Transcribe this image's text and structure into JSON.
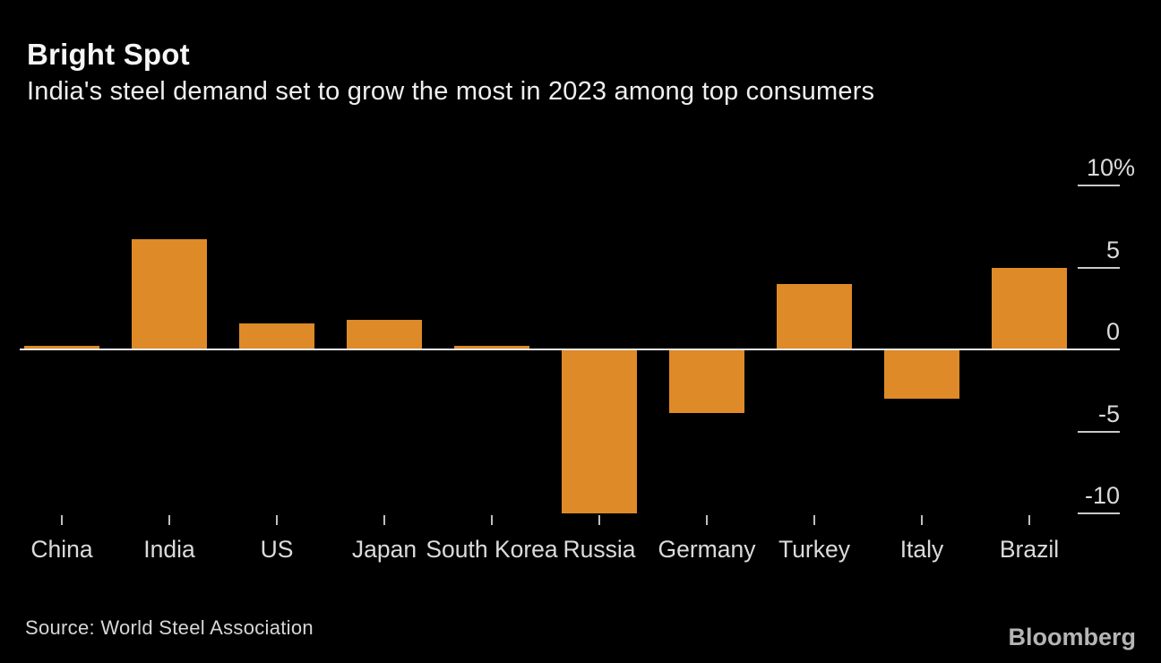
{
  "header": {
    "title": "Bright Spot",
    "subtitle": "India's steel demand set to grow the most in 2023 among top consumers"
  },
  "chart_data": {
    "type": "bar",
    "title": "Bright Spot",
    "subtitle": "India's steel demand set to grow the most in 2023 among top consumers",
    "categories": [
      "China",
      "India",
      "US",
      "Japan",
      "South Korea",
      "Russia",
      "Germany",
      "Turkey",
      "Italy",
      "Brazil"
    ],
    "values": [
      0.0,
      6.7,
      1.6,
      1.8,
      0.0,
      -10.0,
      -3.9,
      4.0,
      -3.0,
      5.0
    ],
    "unit": "%",
    "xlabel": "",
    "ylabel": "",
    "ylim": [
      -11,
      11
    ],
    "yticks": [
      {
        "value": 10,
        "label": "10%"
      },
      {
        "value": 5,
        "label": "5"
      },
      {
        "value": 0,
        "label": "0"
      },
      {
        "value": -5,
        "label": "-5"
      },
      {
        "value": -10,
        "label": "-10"
      }
    ],
    "grid": false,
    "legend": "none",
    "axis_side": "right",
    "bar_color": "#DE8A28"
  },
  "footer": {
    "source": "Source: World Steel Association",
    "brand": "Bloomberg"
  },
  "colors": {
    "background": "#000000",
    "bar": "#DE8A28",
    "title_text": "#f6f6f6",
    "subtitle_text": "#efefef",
    "axis_label": "#dbdbdb",
    "zero_line": "#ededed",
    "tick_line": "#c9c9c9",
    "xtick_mark": "#bfbfbf",
    "category_label": "#dbdbdb",
    "source_text": "#d6d6d6",
    "brand_text": "#b5b5b5"
  }
}
